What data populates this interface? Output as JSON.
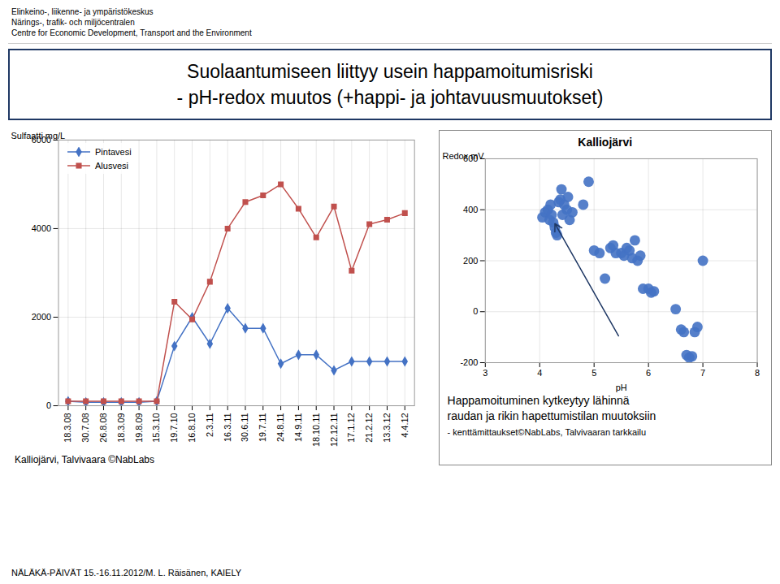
{
  "header_lines": [
    "Elinkeino-, liikenne- ja ympäristökeskus",
    "Närings-, trafik- och miljöcentralen",
    "Centre for Economic Development, Transport and the Environment"
  ],
  "title": "Suolaantumiseen liittyy usein happamoitumisriski",
  "subtitle": "- pH-redox muutos (+happi- ja johtavuusmuutokset)",
  "footer": "NÄLÄKÄ-PÄIVÄT 15.-16.11.2012/M. L. Räisänen, KAIELY",
  "chart_data": [
    {
      "type": "line",
      "categories": [
        "18.3.08",
        "30.7.08",
        "26.8.08",
        "18.3.09",
        "19.8.09",
        "15.3.10",
        "19.7.10",
        "16.8.10",
        "2.3.11",
        "16.3.11",
        "30.6.11",
        "19.7.11",
        "24.8.11",
        "14.9.11",
        "18.10.11",
        "12.12.11",
        "17.1.12",
        "21.2.12",
        "13.3.12",
        "4.4.12"
      ],
      "series": [
        {
          "name": "Pintavesi",
          "color": "#4472C4",
          "marker": "diamond",
          "values": [
            100,
            80,
            80,
            80,
            80,
            100,
            1350,
            2000,
            1400,
            2200,
            1750,
            1750,
            950,
            1150,
            1150,
            800,
            1000,
            1000,
            1000,
            1000
          ]
        },
        {
          "name": "Alusvesi",
          "color": "#C0504D",
          "marker": "square",
          "values": [
            100,
            100,
            100,
            100,
            100,
            100,
            2350,
            1950,
            2800,
            4000,
            4600,
            4750,
            5000,
            4450,
            3800,
            4500,
            3050,
            4100,
            4200,
            4350
          ]
        }
      ],
      "ylabel": "Sulfaatti mg/L",
      "ylim": [
        0,
        6000
      ],
      "yticks": [
        0,
        2000,
        4000,
        6000
      ],
      "grid": true,
      "legend": "upper left",
      "source": "Kalliojärvi, Talvivaara ©NabLabs"
    },
    {
      "type": "scatter",
      "title": "Kalliojärvi",
      "xlabel": "pH",
      "ylabel": "Redox mV",
      "x": [
        4.05,
        4.1,
        4.15,
        4.18,
        4.2,
        4.22,
        4.25,
        4.28,
        4.3,
        4.32,
        4.35,
        4.38,
        4.4,
        4.42,
        4.45,
        4.5,
        4.52,
        4.55,
        4.6,
        4.8,
        4.9,
        5.0,
        5.1,
        5.2,
        5.3,
        5.35,
        5.4,
        5.5,
        5.55,
        5.6,
        5.65,
        5.7,
        5.75,
        5.8,
        5.85,
        5.9,
        6.0,
        6.05,
        6.1,
        6.5,
        6.6,
        6.65,
        6.7,
        6.75,
        6.8,
        6.85,
        6.9,
        7.0
      ],
      "values": [
        370,
        390,
        400,
        360,
        420,
        380,
        350,
        330,
        310,
        300,
        430,
        440,
        480,
        380,
        420,
        400,
        450,
        360,
        390,
        420,
        510,
        240,
        230,
        130,
        250,
        260,
        230,
        230,
        220,
        250,
        240,
        210,
        280,
        200,
        220,
        90,
        90,
        75,
        80,
        10,
        -70,
        -80,
        -170,
        -180,
        -175,
        -80,
        -60,
        200
      ],
      "color": "#4472C4",
      "xlim": [
        3,
        8
      ],
      "ylim": [
        -200,
        600
      ],
      "xticks": [
        3,
        4,
        5,
        6,
        7,
        8
      ],
      "yticks": [
        -200,
        0,
        200,
        400,
        600
      ],
      "grid": true,
      "arrow": {
        "x1": 5.45,
        "y1": -95,
        "x2": 4.28,
        "y2": 345
      },
      "annotations": [
        "Happamoituminen kytkeytyy lähinnä",
        "raudan ja rikin hapettumistilan muutoksiin",
        "- kenttämittaukset©NabLabs, Talvivaaran tarkkailu"
      ]
    }
  ]
}
